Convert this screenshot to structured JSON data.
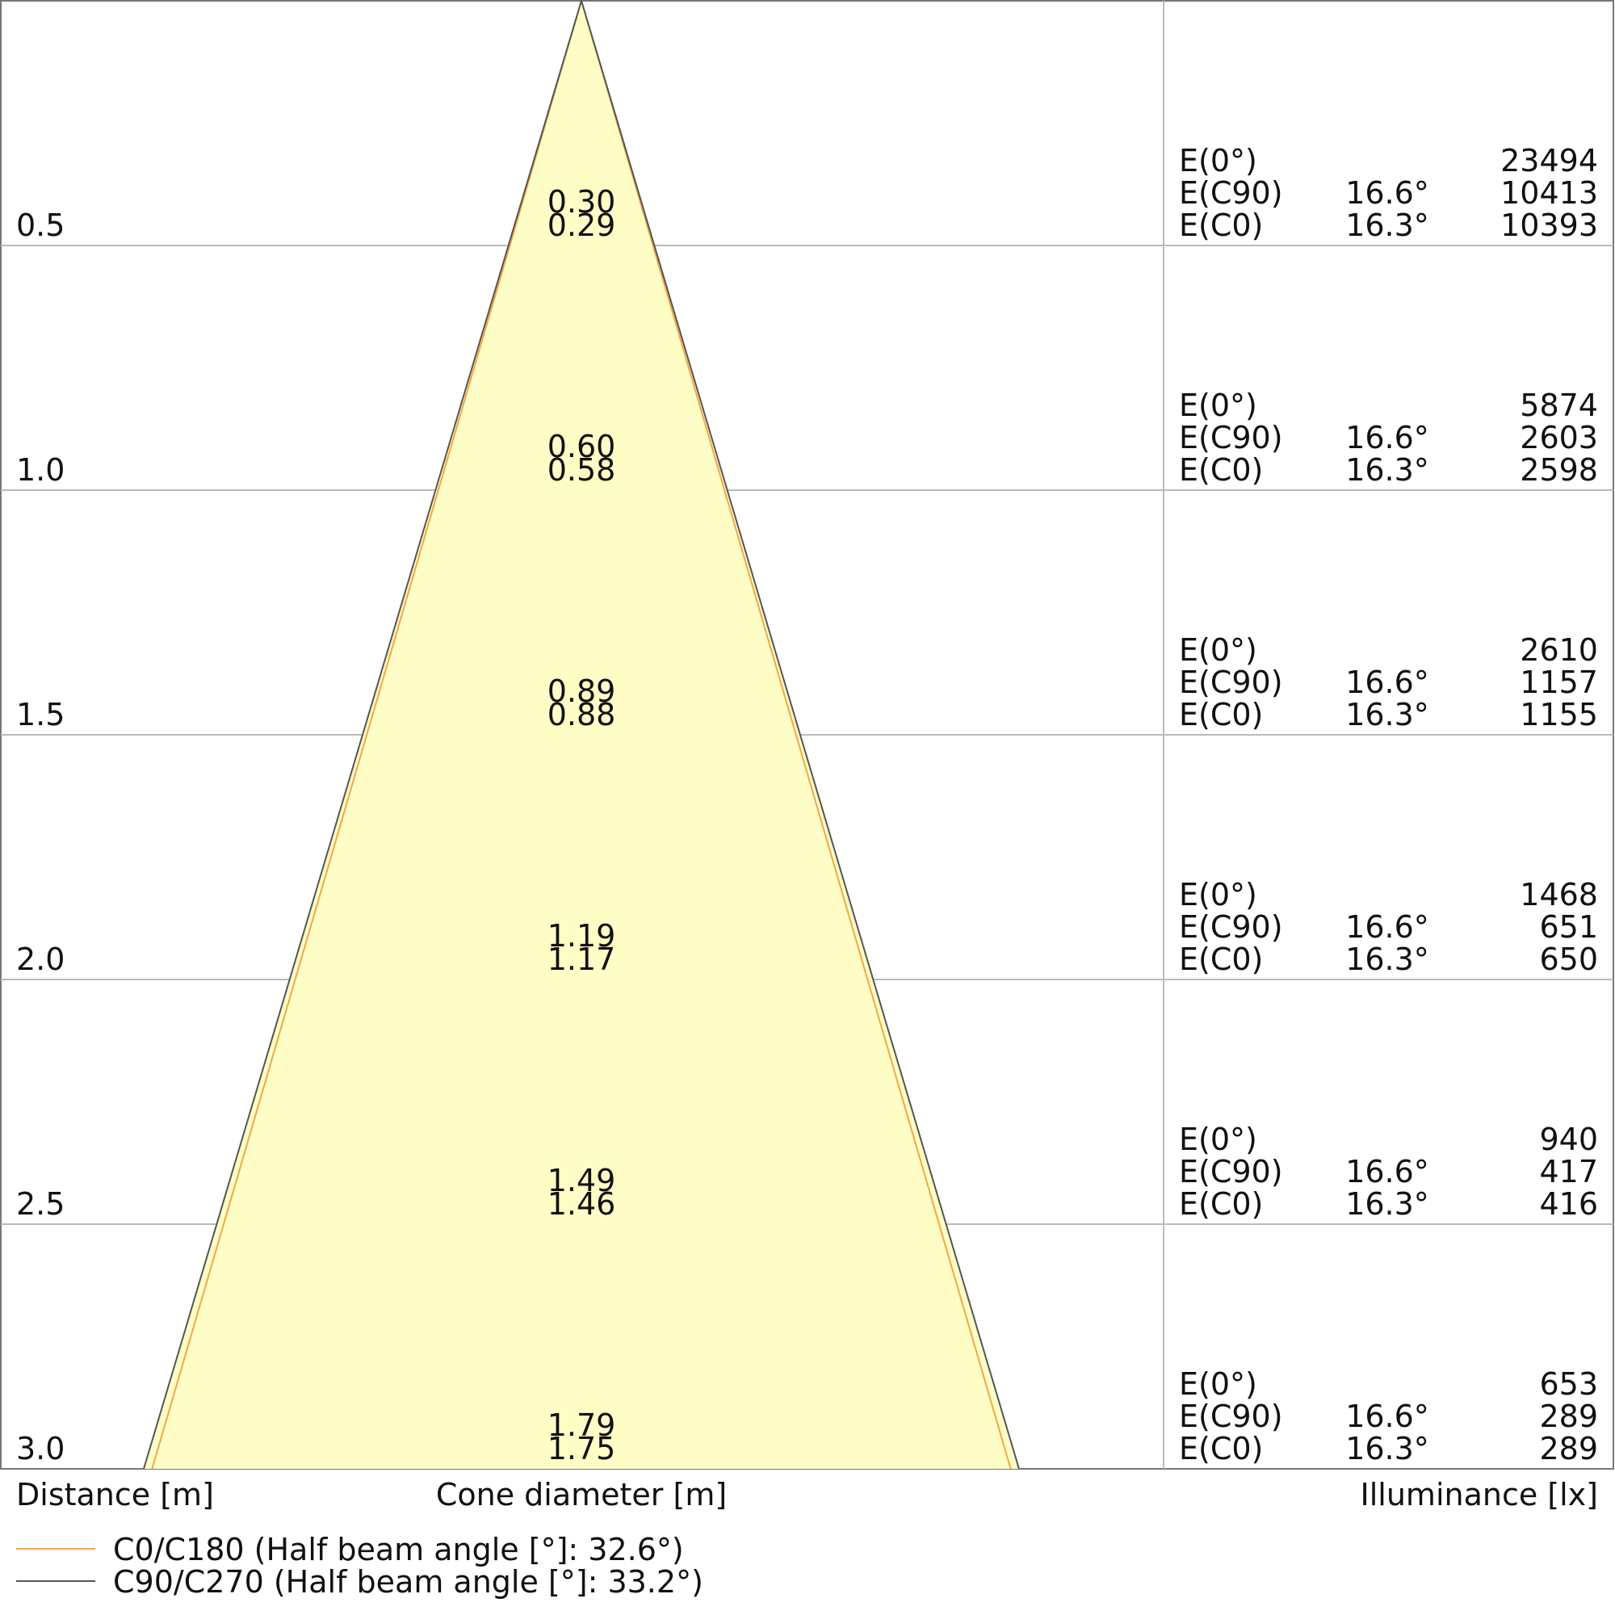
{
  "chart_data": {
    "type": "cone_diagram",
    "distance_unit_label": "Distance [m]",
    "diameter_unit_label": "Cone diameter [m]",
    "illuminance_unit_label": "Illuminance [lx]",
    "distance_range": [
      0,
      3.0
    ],
    "rows": [
      {
        "distance": "0.5",
        "d_c90": "0.30",
        "d_c0": "0.29",
        "e0": "23494",
        "e_c90": "10413",
        "e_c0": "10393",
        "angle_c90": "16.6°",
        "angle_c0": "16.3°"
      },
      {
        "distance": "1.0",
        "d_c90": "0.60",
        "d_c0": "0.58",
        "e0": "5874",
        "e_c90": "2603",
        "e_c0": "2598",
        "angle_c90": "16.6°",
        "angle_c0": "16.3°"
      },
      {
        "distance": "1.5",
        "d_c90": "0.89",
        "d_c0": "0.88",
        "e0": "2610",
        "e_c90": "1157",
        "e_c0": "1155",
        "angle_c90": "16.6°",
        "angle_c0": "16.3°"
      },
      {
        "distance": "2.0",
        "d_c90": "1.19",
        "d_c0": "1.17",
        "e0": "1468",
        "e_c90": "651",
        "e_c0": "650",
        "angle_c90": "16.6°",
        "angle_c0": "16.3°"
      },
      {
        "distance": "2.5",
        "d_c90": "1.49",
        "d_c0": "1.46",
        "e0": "940",
        "e_c90": "417",
        "e_c0": "416",
        "angle_c90": "16.6°",
        "angle_c0": "16.3°"
      },
      {
        "distance": "3.0",
        "d_c90": "1.79",
        "d_c0": "1.75",
        "e0": "653",
        "e_c90": "289",
        "e_c0": "289",
        "angle_c90": "16.6°",
        "angle_c0": "16.3°"
      }
    ],
    "labels": {
      "e0": "E(0°)",
      "e_c90": "E(C90)",
      "e_c0": "E(C0)"
    },
    "series": [
      {
        "name": "C0/C180 (Half beam angle [°]: 32.6°)",
        "half_beam_angle": 32.6,
        "color": "#f5a54a"
      },
      {
        "name": "C90/C270 (Half beam angle [°]: 33.2°)",
        "half_beam_angle": 33.2,
        "color": "#555555"
      }
    ],
    "cone_fill_color": "#fdfdc5"
  }
}
